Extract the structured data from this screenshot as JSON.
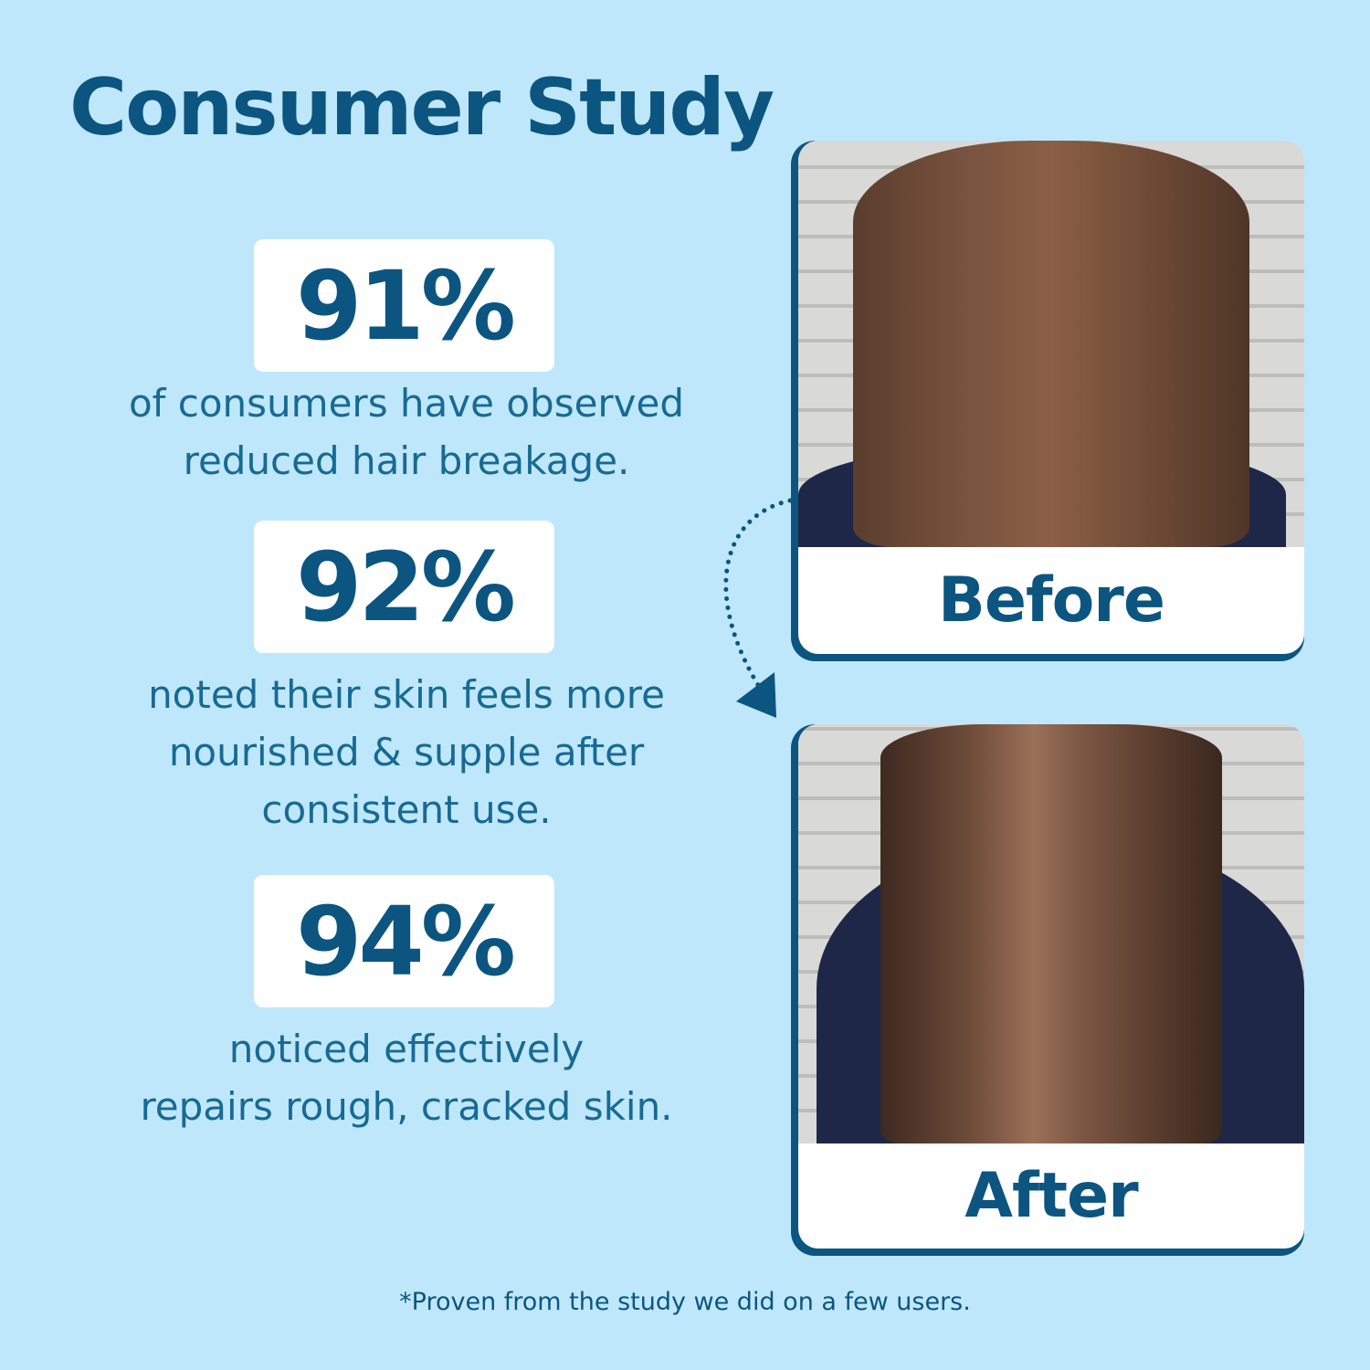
{
  "title": "Consumer Study",
  "stats": [
    {
      "value": "91%",
      "lines": [
        "of consumers have observed",
        "reduced hair breakage."
      ]
    },
    {
      "value": "92%",
      "lines": [
        "noted their skin feels more",
        "nourished & supple after",
        "consistent use."
      ]
    },
    {
      "value": "94%",
      "lines": [
        "noticed effectively",
        "repairs rough, cracked skin."
      ]
    }
  ],
  "before_label": "Before",
  "after_label": "After",
  "footnote": "*Proven from the study we did on a few users.",
  "colors": {
    "background": "#bfe7fb",
    "primary": "#0b5580",
    "body_text": "#176a93"
  }
}
